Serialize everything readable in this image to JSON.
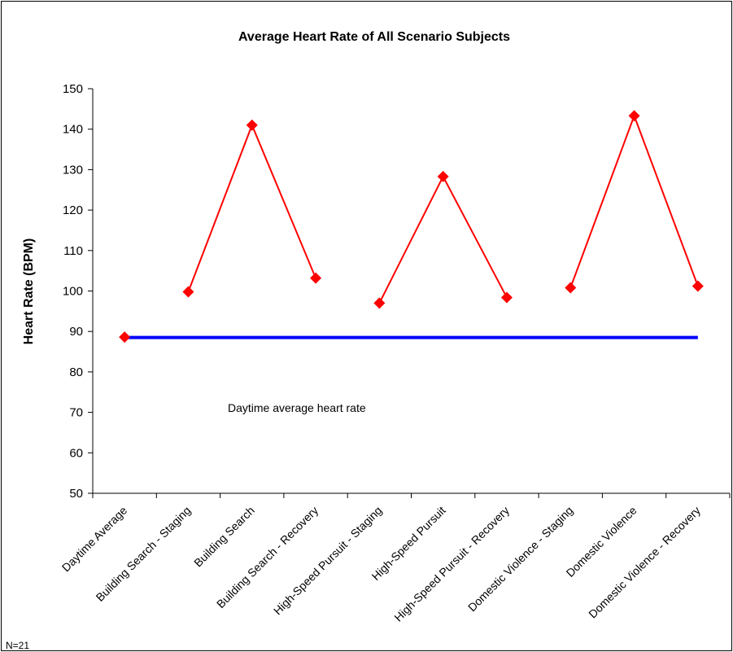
{
  "chart_data": {
    "type": "line",
    "title": "Average Heart Rate of All Scenario Subjects",
    "xlabel": "",
    "ylabel": "Heart Rate (BPM)",
    "ylim": [
      50,
      150
    ],
    "yticks": [
      50,
      60,
      70,
      80,
      90,
      100,
      110,
      120,
      130,
      140,
      150
    ],
    "grid": false,
    "categories": [
      "Daytime Average",
      "Building Search - Staging",
      "Building Search",
      "Building Search - Recovery",
      "High-Speed Pursuit - Staging",
      "High-Speed Pursuit",
      "High-Speed Pursuit - Recovery",
      "Domestic Violence - Staging",
      "Domestic Violence",
      "Domestic Violence - Recovery"
    ],
    "series": [
      {
        "color": "#ff0000",
        "marker": "diamond",
        "values": [
          88.6,
          99.8,
          141.0,
          103.2,
          97.0,
          128.3,
          98.4,
          100.8,
          143.3,
          101.2
        ],
        "segments": [
          [
            1,
            3
          ],
          [
            4,
            6
          ],
          [
            7,
            9
          ]
        ]
      },
      {
        "color": "#0000ff",
        "values": [
          88.5,
          88.5,
          88.5,
          88.5,
          88.5,
          88.5,
          88.5,
          88.5,
          88.5,
          88.5
        ]
      }
    ],
    "annotation": "Daytime average heart rate",
    "footnote": "N=21"
  }
}
